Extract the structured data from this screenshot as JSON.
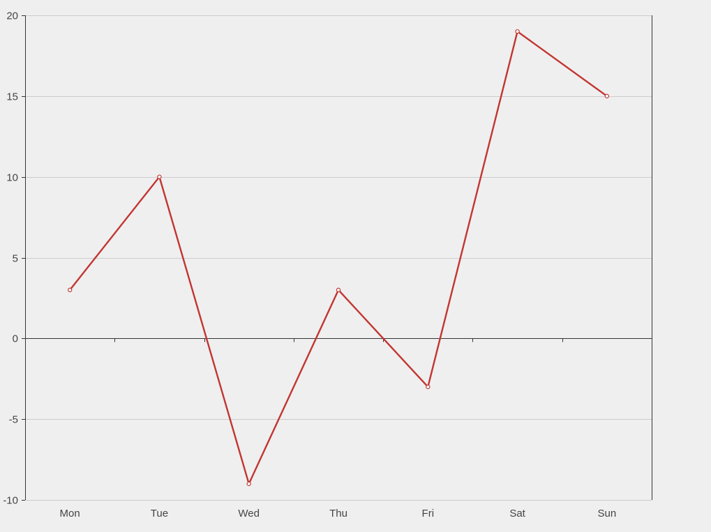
{
  "chart_data": {
    "type": "line",
    "title": "",
    "xlabel": "",
    "ylabel": "",
    "categories": [
      "Mon",
      "Tue",
      "Wed",
      "Thu",
      "Fri",
      "Sat",
      "Sun"
    ],
    "series": [
      {
        "values": [
          3,
          10,
          -9,
          3,
          -3,
          19,
          15
        ],
        "color": "#c23531"
      }
    ],
    "ylim": [
      -10,
      20
    ],
    "yticks": [
      -10,
      -5,
      0,
      5,
      10,
      15,
      20
    ],
    "grid": true,
    "legend": "none",
    "colors": {
      "background": "#efefef",
      "gridline": "#cccccc",
      "axis": "#333333",
      "tick_label": "#444444",
      "marker_fill": "#ffffff"
    }
  }
}
